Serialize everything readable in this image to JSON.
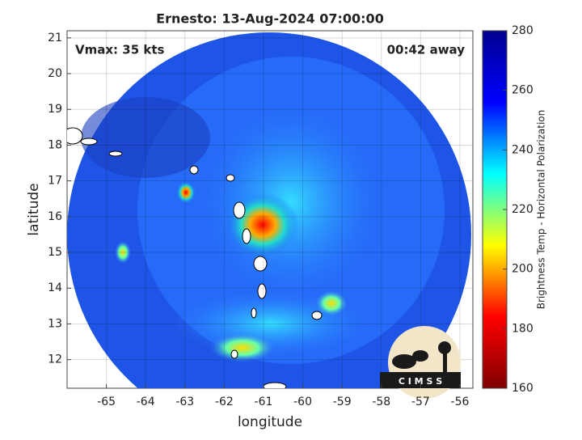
{
  "chart_data": {
    "type": "heatmap",
    "title": "Ernesto: 13-Aug-2024 07:00:00",
    "annotations": [
      "Vmax: 35 kts",
      "00:42 away"
    ],
    "xlabel": "longitude",
    "ylabel": "latitude",
    "xlim": [
      -66,
      -55.67
    ],
    "ylim": [
      11.2,
      21.2
    ],
    "xticks": [
      -65,
      -64,
      -63,
      -62,
      -61,
      -60,
      -59,
      -58,
      -57,
      -56
    ],
    "yticks": [
      12,
      13,
      14,
      15,
      16,
      17,
      18,
      19,
      20,
      21
    ],
    "grid": true,
    "colorbar": {
      "label": "Brightness Temp - Horizontal Polarization",
      "lim": [
        160,
        280
      ],
      "ticks": [
        160,
        180,
        200,
        220,
        240,
        260,
        280
      ],
      "colors": [
        "#7f0000",
        "#ff0000",
        "#ffff00",
        "#00ffff",
        "#0000ff",
        "#00008f"
      ]
    },
    "logo": "C I M S S"
  }
}
